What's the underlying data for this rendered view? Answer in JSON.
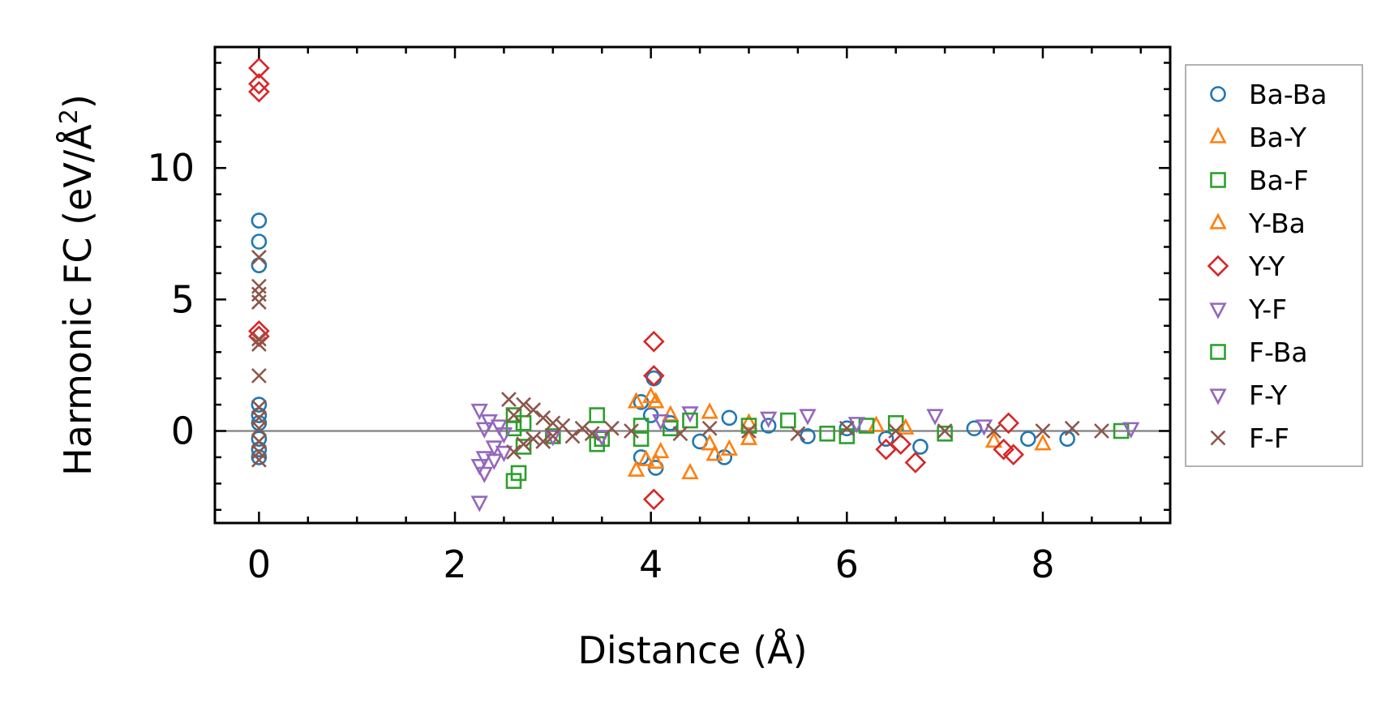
{
  "chart_data": {
    "type": "scatter",
    "xlabel": "Distance (Å)",
    "ylabel": "Harmonic FC (eV/Å²)",
    "ylabel_main": "Harmonic FC (eV/Å",
    "ylabel_sup": "2",
    "ylabel_close": ")",
    "xlim": [
      -0.45,
      9.3
    ],
    "ylim": [
      -3.5,
      14.6
    ],
    "xticks": [
      0,
      2,
      4,
      6,
      8
    ],
    "xtick_labels": [
      "0",
      "2",
      "4",
      "6",
      "8"
    ],
    "yticks": [
      0,
      5,
      10
    ],
    "ytick_labels": [
      "0",
      "5",
      "10"
    ],
    "zero_line": true,
    "legend_position": "outside-right",
    "series": [
      {
        "name": "Ba-Ba",
        "marker": "circle",
        "color": "#1f77b4",
        "points": [
          [
            0,
            8.0
          ],
          [
            0,
            7.2
          ],
          [
            0,
            6.3
          ],
          [
            0,
            1.0
          ],
          [
            0,
            0.6
          ],
          [
            0,
            0.3
          ],
          [
            0,
            -0.3
          ],
          [
            0,
            -0.7
          ],
          [
            0,
            -1.0
          ],
          [
            3.9,
            1.1
          ],
          [
            3.9,
            -1.0
          ],
          [
            4.0,
            0.6
          ],
          [
            4.03,
            2.0
          ],
          [
            4.05,
            -1.4
          ],
          [
            4.2,
            0.3
          ],
          [
            4.5,
            -0.4
          ],
          [
            4.75,
            -1.0
          ],
          [
            4.8,
            0.5
          ],
          [
            5.2,
            0.2
          ],
          [
            5.6,
            -0.2
          ],
          [
            6.0,
            0.1
          ],
          [
            6.4,
            -0.3
          ],
          [
            6.75,
            -0.6
          ],
          [
            7.3,
            0.1
          ],
          [
            7.85,
            -0.3
          ],
          [
            8.25,
            -0.3
          ]
        ]
      },
      {
        "name": "Ba-Y",
        "marker": "triangle-up",
        "color": "#ff7f0e",
        "points": [
          [
            3.85,
            1.1
          ],
          [
            3.85,
            -1.5
          ],
          [
            4.0,
            1.3
          ],
          [
            4.05,
            -1.2
          ],
          [
            4.1,
            -0.8
          ],
          [
            4.2,
            0.6
          ],
          [
            4.4,
            -1.6
          ],
          [
            4.6,
            0.7
          ],
          [
            4.65,
            -0.9
          ],
          [
            4.8,
            -0.7
          ],
          [
            5.0,
            0.3
          ],
          [
            6.3,
            0.2
          ],
          [
            7.5,
            -0.4
          ],
          [
            8.0,
            -0.5
          ]
        ]
      },
      {
        "name": "Ba-F",
        "marker": "square",
        "color": "#2ca02c",
        "points": [
          [
            2.6,
            -1.9
          ],
          [
            2.65,
            -1.6
          ],
          [
            2.6,
            0.6
          ],
          [
            2.7,
            0.3
          ],
          [
            3.0,
            -0.2
          ],
          [
            3.45,
            0.6
          ],
          [
            3.45,
            -0.5
          ],
          [
            3.5,
            -0.3
          ],
          [
            3.9,
            -0.3
          ],
          [
            4.2,
            0.1
          ],
          [
            5.0,
            0.2
          ],
          [
            5.8,
            -0.1
          ],
          [
            6.2,
            0.2
          ],
          [
            6.5,
            0.3
          ],
          [
            7.0,
            -0.1
          ],
          [
            8.8,
            0.0
          ]
        ]
      },
      {
        "name": "Y-Ba",
        "marker": "triangle-up",
        "color": "#ff7f0e",
        "points": [
          [
            3.95,
            -1.1
          ],
          [
            4.05,
            1.1
          ],
          [
            4.6,
            -0.5
          ],
          [
            5.0,
            -0.3
          ],
          [
            6.6,
            0.1
          ]
        ]
      },
      {
        "name": "Y-Y",
        "marker": "diamond",
        "color": "#d62728",
        "points": [
          [
            0,
            13.8
          ],
          [
            0,
            13.2
          ],
          [
            0,
            12.9
          ],
          [
            0,
            3.8
          ],
          [
            0,
            3.6
          ],
          [
            4.03,
            3.4
          ],
          [
            4.03,
            2.1
          ],
          [
            4.03,
            -2.6
          ],
          [
            6.4,
            -0.7
          ],
          [
            6.55,
            -0.5
          ],
          [
            6.7,
            -1.2
          ],
          [
            7.6,
            -0.7
          ],
          [
            7.65,
            0.3
          ],
          [
            7.7,
            -0.9
          ]
        ]
      },
      {
        "name": "Y-F",
        "marker": "triangle-down",
        "color": "#9467bd",
        "points": [
          [
            2.25,
            0.8
          ],
          [
            2.25,
            -1.3
          ],
          [
            2.25,
            -2.7
          ],
          [
            2.3,
            -1.0
          ],
          [
            2.35,
            0.4
          ],
          [
            2.4,
            -0.6
          ],
          [
            2.45,
            0.2
          ],
          [
            2.5,
            -0.8
          ],
          [
            3.0,
            -0.2
          ],
          [
            4.4,
            0.7
          ],
          [
            5.2,
            0.5
          ],
          [
            5.6,
            0.6
          ],
          [
            6.9,
            0.6
          ],
          [
            8.9,
            0.1
          ]
        ]
      },
      {
        "name": "F-Ba",
        "marker": "square",
        "color": "#2ca02c",
        "points": [
          [
            2.6,
            0.1
          ],
          [
            2.7,
            -0.6
          ],
          [
            3.9,
            0.2
          ],
          [
            4.4,
            0.4
          ],
          [
            5.4,
            0.4
          ],
          [
            6.0,
            -0.2
          ]
        ]
      },
      {
        "name": "F-Y",
        "marker": "triangle-down",
        "color": "#9467bd",
        "points": [
          [
            2.3,
            -1.6
          ],
          [
            2.3,
            0.1
          ],
          [
            2.4,
            -1.1
          ],
          [
            2.5,
            -0.1
          ],
          [
            3.5,
            -0.2
          ],
          [
            4.1,
            0.4
          ],
          [
            6.1,
            0.3
          ],
          [
            7.4,
            0.2
          ]
        ]
      },
      {
        "name": "F-F",
        "marker": "x",
        "color": "#8c564b",
        "points": [
          [
            0,
            6.6
          ],
          [
            0,
            5.5
          ],
          [
            0,
            5.2
          ],
          [
            0,
            4.9
          ],
          [
            0,
            3.5
          ],
          [
            0,
            3.3
          ],
          [
            0,
            2.1
          ],
          [
            0,
            0.9
          ],
          [
            0,
            0.5
          ],
          [
            0,
            0.1
          ],
          [
            0,
            -0.4
          ],
          [
            0,
            -0.8
          ],
          [
            0,
            -1.1
          ],
          [
            2.55,
            1.2
          ],
          [
            2.6,
            -0.8
          ],
          [
            2.6,
            0.6
          ],
          [
            2.7,
            1.0
          ],
          [
            2.7,
            -0.5
          ],
          [
            2.8,
            0.8
          ],
          [
            2.8,
            -0.3
          ],
          [
            2.9,
            0.5
          ],
          [
            2.9,
            -0.4
          ],
          [
            3.0,
            0.3
          ],
          [
            3.0,
            -0.2
          ],
          [
            3.1,
            0.2
          ],
          [
            3.2,
            -0.2
          ],
          [
            3.3,
            0.1
          ],
          [
            3.4,
            -0.1
          ],
          [
            3.6,
            0.1
          ],
          [
            3.8,
            0.0
          ],
          [
            4.3,
            -0.1
          ],
          [
            4.6,
            0.1
          ],
          [
            5.0,
            0.0
          ],
          [
            5.5,
            -0.1
          ],
          [
            6.0,
            0.1
          ],
          [
            6.5,
            0.0
          ],
          [
            7.0,
            0.0
          ],
          [
            7.5,
            0.0
          ],
          [
            8.0,
            0.0
          ],
          [
            8.3,
            0.1
          ],
          [
            8.6,
            0.0
          ]
        ]
      }
    ]
  }
}
